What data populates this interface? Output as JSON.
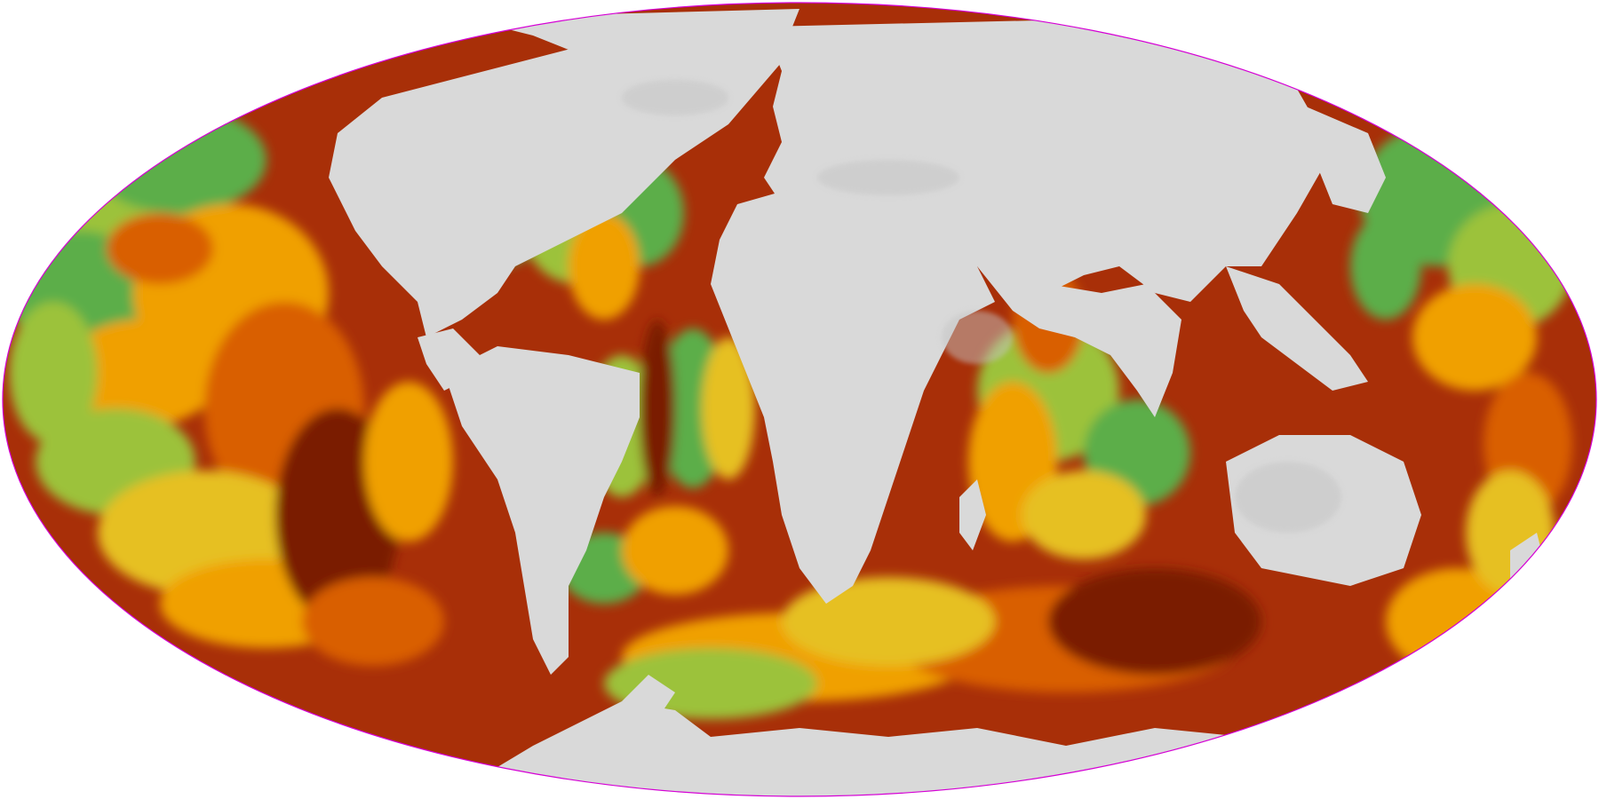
{
  "map": {
    "projection": "mollweide",
    "region": "global",
    "colors": {
      "land": "#d9d9d9",
      "land_shadow": "#c4c4c4",
      "deep_red": "#7a1c06",
      "dark_brown": "#6e3a2a",
      "red_brown": "#a82f08",
      "orange": "#d95f00",
      "amber": "#f0a000",
      "yellow": "#e6c020",
      "yellow_green": "#9cc23a",
      "green": "#5cae4a",
      "dark_green": "#2f9a4a",
      "outline": "#d500d5"
    },
    "legend": null,
    "labels": []
  }
}
